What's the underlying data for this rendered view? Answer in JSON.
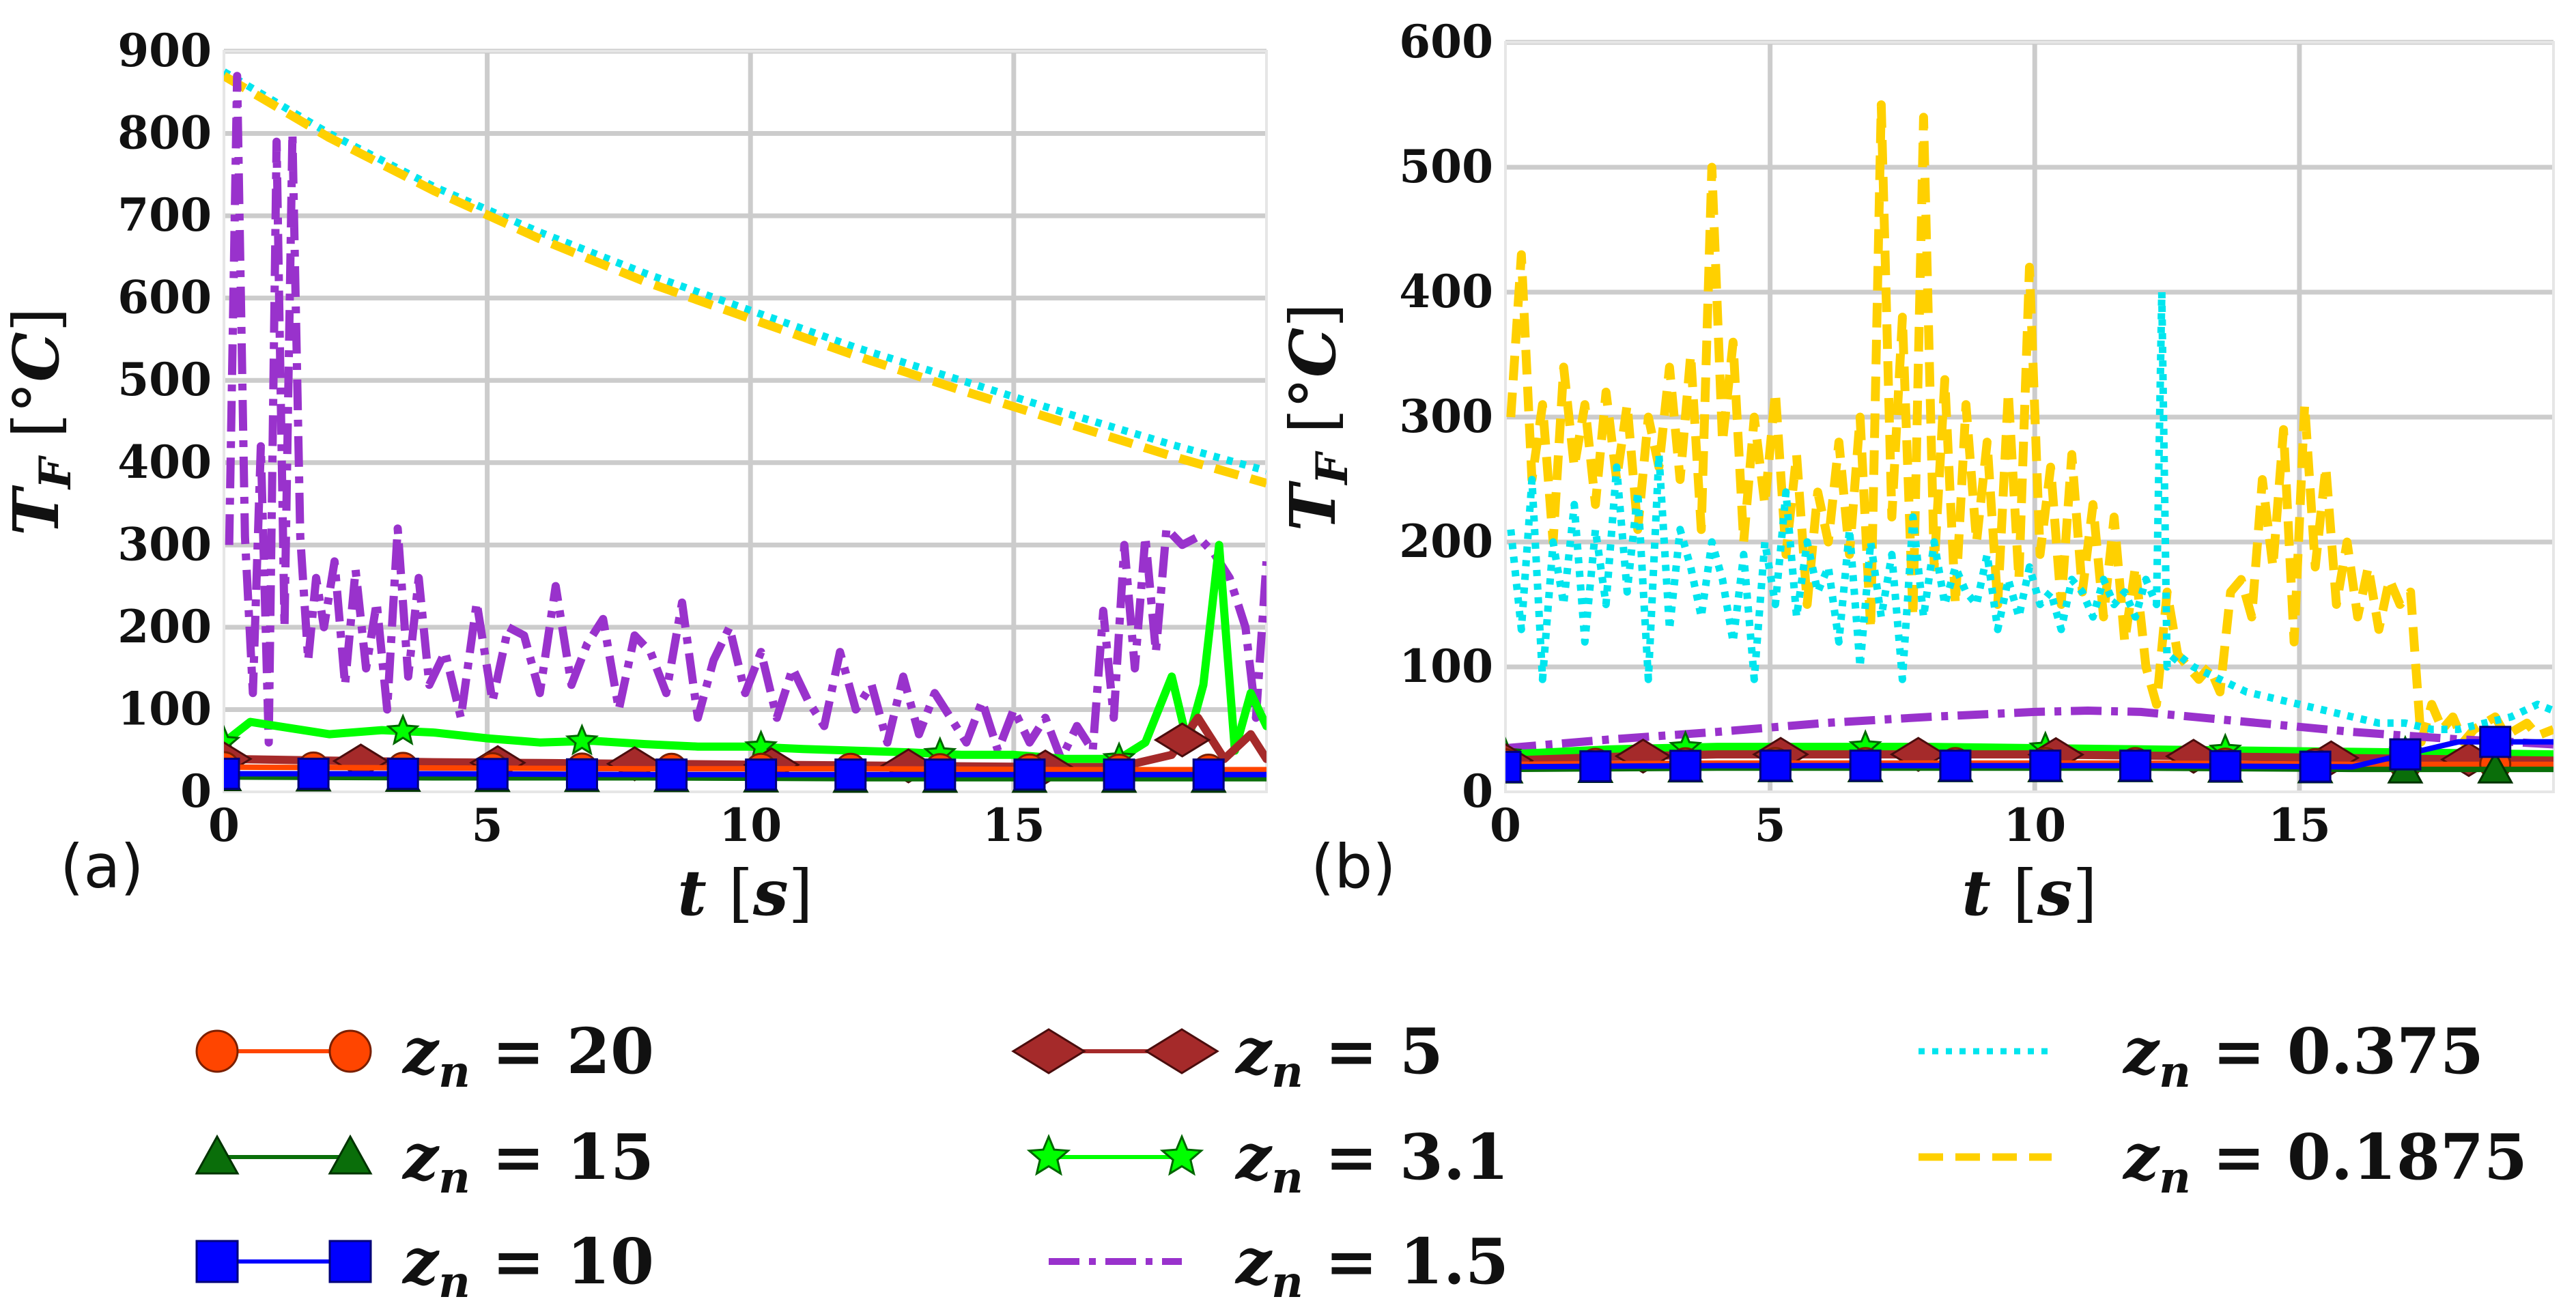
{
  "colors": {
    "zn20": "#ff4500",
    "zn15": "#0a6e0a",
    "zn10": "#0000ff",
    "zn5": "#a52a2a",
    "zn3_1": "#00ff00",
    "zn1_5": "#9932cc",
    "zn0_375": "#00e5ee",
    "zn0_1875": "#ffd000",
    "grid": "#cccccc"
  },
  "legend": [
    {
      "key": "zn20",
      "text": "z",
      "sub": "n",
      "eq": " = 20",
      "marker": "circle",
      "dash": "solid"
    },
    {
      "key": "zn15",
      "text": "z",
      "sub": "n",
      "eq": " = 15",
      "marker": "triangle",
      "dash": "solid"
    },
    {
      "key": "zn10",
      "text": "z",
      "sub": "n",
      "eq": " = 10",
      "marker": "square",
      "dash": "solid"
    },
    {
      "key": "zn5",
      "text": "z",
      "sub": "n",
      "eq": " = 5",
      "marker": "diamond",
      "dash": "solid"
    },
    {
      "key": "zn3_1",
      "text": "z",
      "sub": "n",
      "eq": " = 3.1",
      "marker": "star",
      "dash": "solid"
    },
    {
      "key": "zn1_5",
      "text": "z",
      "sub": "n",
      "eq": " = 1.5",
      "marker": "none",
      "dash": "dashdot"
    },
    {
      "key": "zn0_375",
      "text": "z",
      "sub": "n",
      "eq": " = 0.375",
      "marker": "none",
      "dash": "dotted"
    },
    {
      "key": "zn0_1875",
      "text": "z",
      "sub": "n",
      "eq": " = 0.1875",
      "marker": "none",
      "dash": "dashed"
    }
  ],
  "chart_data": [
    {
      "type": "line",
      "panel_label": "(a)",
      "xlabel": "t [s]",
      "ylabel": "T_F [°C]",
      "xlim": [
        0,
        19.8
      ],
      "ylim": [
        0,
        900
      ],
      "xticks": [
        0,
        5,
        10,
        15
      ],
      "yticks": [
        0,
        100,
        200,
        300,
        400,
        500,
        600,
        700,
        800,
        900
      ],
      "grid": true,
      "series": [
        {
          "name": "zn0_375",
          "x": [
            0,
            2,
            4,
            6,
            8,
            10,
            12,
            14,
            16,
            18,
            19.8
          ],
          "y": [
            875,
            800,
            735,
            680,
            630,
            585,
            540,
            500,
            460,
            422,
            390
          ]
        },
        {
          "name": "zn0_1875",
          "x": [
            0,
            2,
            4,
            6,
            8,
            10,
            12,
            14,
            16,
            18,
            19.8
          ],
          "y": [
            870,
            795,
            730,
            672,
            620,
            575,
            530,
            488,
            448,
            408,
            375
          ]
        },
        {
          "name": "zn1_5",
          "x": [
            0.1,
            0.25,
            0.4,
            0.55,
            0.7,
            0.85,
            1.0,
            1.15,
            1.3,
            1.45,
            1.6,
            1.75,
            1.9,
            2.1,
            2.3,
            2.5,
            2.7,
            2.9,
            3.1,
            3.3,
            3.5,
            3.7,
            3.9,
            4.2,
            4.5,
            4.8,
            5.1,
            5.4,
            5.7,
            6.0,
            6.3,
            6.6,
            6.9,
            7.2,
            7.5,
            7.8,
            8.1,
            8.4,
            8.7,
            9.0,
            9.3,
            9.6,
            9.9,
            10.2,
            10.5,
            10.8,
            11.1,
            11.4,
            11.7,
            12.0,
            12.3,
            12.6,
            12.9,
            13.2,
            13.5,
            13.8,
            14.1,
            14.4,
            14.7,
            15.0,
            15.3,
            15.6,
            15.9,
            16.2,
            16.5,
            16.7,
            16.9,
            17.1,
            17.3,
            17.5,
            17.7,
            17.9,
            18.2,
            18.5,
            18.8,
            19.1,
            19.4,
            19.6,
            19.8
          ],
          "y": [
            300,
            870,
            310,
            120,
            420,
            60,
            790,
            200,
            800,
            310,
            160,
            260,
            200,
            280,
            130,
            270,
            150,
            230,
            100,
            320,
            140,
            260,
            130,
            170,
            90,
            230,
            110,
            200,
            190,
            120,
            250,
            130,
            180,
            210,
            100,
            190,
            170,
            120,
            230,
            90,
            160,
            200,
            120,
            170,
            90,
            150,
            110,
            80,
            170,
            100,
            130,
            60,
            140,
            70,
            120,
            90,
            60,
            110,
            50,
            100,
            60,
            90,
            40,
            80,
            50,
            220,
            90,
            300,
            150,
            310,
            170,
            320,
            300,
            310,
            290,
            260,
            200,
            90,
            280
          ]
        },
        {
          "name": "zn3_1",
          "x": [
            0,
            0.5,
            1,
            2,
            3,
            4,
            5,
            6,
            7,
            8,
            9,
            10,
            11,
            12,
            13,
            14,
            15,
            16,
            17,
            17.5,
            18,
            18.3,
            18.6,
            18.9,
            19.2,
            19.5,
            19.8
          ],
          "y": [
            60,
            85,
            80,
            70,
            75,
            72,
            65,
            60,
            62,
            58,
            55,
            55,
            52,
            50,
            48,
            45,
            45,
            40,
            40,
            60,
            140,
            60,
            130,
            300,
            50,
            120,
            80
          ]
        },
        {
          "name": "zn5",
          "x": [
            0,
            2,
            4,
            6,
            8,
            10,
            12,
            14,
            16,
            17,
            18,
            18.5,
            19,
            19.5,
            19.8
          ],
          "y": [
            40,
            38,
            36,
            35,
            34,
            33,
            32,
            31,
            30,
            30,
            45,
            90,
            40,
            70,
            40
          ]
        },
        {
          "name": "zn20",
          "x": [
            0,
            4,
            8,
            12,
            16,
            19.8
          ],
          "y": [
            30,
            29,
            28,
            28,
            27,
            27
          ]
        },
        {
          "name": "zn15",
          "x": [
            0,
            4,
            8,
            12,
            16,
            19.8
          ],
          "y": [
            18,
            17,
            17,
            16,
            16,
            16
          ]
        },
        {
          "name": "zn10",
          "x": [
            0,
            4,
            8,
            12,
            16,
            19.8
          ],
          "y": [
            22,
            22,
            21,
            21,
            21,
            21
          ]
        }
      ]
    },
    {
      "type": "line",
      "panel_label": "(b)",
      "xlabel": "t [s]",
      "ylabel": "T_F [°C]",
      "xlim": [
        0,
        19.8
      ],
      "ylim": [
        0,
        600
      ],
      "xticks": [
        0,
        5,
        10,
        15
      ],
      "yticks": [
        0,
        100,
        200,
        300,
        400,
        500,
        600
      ],
      "grid": true,
      "series": [
        {
          "name": "zn0_1875",
          "x": [
            0.1,
            0.3,
            0.5,
            0.7,
            0.9,
            1.1,
            1.3,
            1.5,
            1.7,
            1.9,
            2.1,
            2.3,
            2.5,
            2.7,
            2.9,
            3.1,
            3.3,
            3.5,
            3.7,
            3.9,
            4.1,
            4.3,
            4.5,
            4.7,
            4.9,
            5.1,
            5.3,
            5.5,
            5.7,
            5.9,
            6.1,
            6.3,
            6.5,
            6.7,
            6.9,
            7.1,
            7.3,
            7.5,
            7.7,
            7.9,
            8.1,
            8.3,
            8.5,
            8.7,
            8.9,
            9.1,
            9.3,
            9.5,
            9.7,
            9.9,
            10.1,
            10.3,
            10.5,
            10.7,
            10.9,
            11.1,
            11.3,
            11.5,
            11.7,
            11.9,
            12.1,
            12.3,
            12.5,
            12.7,
            12.9,
            13.1,
            13.3,
            13.5,
            13.7,
            13.9,
            14.1,
            14.3,
            14.5,
            14.7,
            14.9,
            15.1,
            15.3,
            15.5,
            15.7,
            15.9,
            16.1,
            16.3,
            16.5,
            16.7,
            16.9,
            17.1,
            17.3,
            17.5,
            17.7,
            17.9,
            18.1,
            18.3,
            18.5,
            18.7,
            18.9,
            19.1,
            19.3,
            19.5,
            19.8
          ],
          "y": [
            300,
            430,
            250,
            310,
            200,
            340,
            260,
            310,
            230,
            320,
            250,
            310,
            210,
            300,
            260,
            340,
            250,
            350,
            210,
            500,
            280,
            360,
            200,
            300,
            230,
            320,
            190,
            270,
            150,
            240,
            200,
            280,
            190,
            300,
            130,
            550,
            220,
            380,
            140,
            540,
            180,
            330,
            150,
            310,
            200,
            280,
            150,
            320,
            170,
            420,
            190,
            260,
            150,
            270,
            160,
            230,
            140,
            220,
            120,
            180,
            100,
            70,
            160,
            110,
            100,
            90,
            100,
            80,
            160,
            170,
            140,
            250,
            180,
            290,
            120,
            310,
            180,
            260,
            150,
            200,
            140,
            180,
            130,
            170,
            150,
            160,
            40,
            70,
            50,
            60,
            40,
            50,
            55,
            60,
            45,
            50,
            55,
            45,
            50
          ]
        },
        {
          "name": "zn0_375",
          "x": [
            0.1,
            0.3,
            0.5,
            0.7,
            0.9,
            1.1,
            1.3,
            1.5,
            1.7,
            1.9,
            2.1,
            2.3,
            2.5,
            2.7,
            2.9,
            3.1,
            3.3,
            3.5,
            3.7,
            3.9,
            4.1,
            4.3,
            4.5,
            4.7,
            4.9,
            5.1,
            5.3,
            5.5,
            5.7,
            5.9,
            6.1,
            6.3,
            6.5,
            6.7,
            6.9,
            7.1,
            7.3,
            7.5,
            7.7,
            7.9,
            8.1,
            8.3,
            8.5,
            8.7,
            8.9,
            9.1,
            9.3,
            9.5,
            9.7,
            9.9,
            10.1,
            10.3,
            10.5,
            10.7,
            10.9,
            11.1,
            11.3,
            11.5,
            11.7,
            11.9,
            12.1,
            12.3,
            12.4,
            12.5,
            12.7,
            13.0,
            13.5,
            14.0,
            14.5,
            15.0,
            15.5,
            16.0,
            16.5,
            17.0,
            17.5,
            18.0,
            18.5,
            19.0,
            19.5,
            19.8
          ],
          "y": [
            210,
            130,
            250,
            90,
            200,
            150,
            230,
            120,
            210,
            150,
            260,
            160,
            240,
            90,
            270,
            130,
            210,
            180,
            140,
            200,
            170,
            120,
            190,
            90,
            200,
            150,
            240,
            140,
            200,
            160,
            180,
            120,
            210,
            100,
            200,
            140,
            190,
            90,
            220,
            140,
            200,
            150,
            180,
            160,
            150,
            190,
            130,
            170,
            140,
            180,
            150,
            160,
            130,
            170,
            160,
            140,
            170,
            150,
            160,
            140,
            170,
            150,
            400,
            100,
            110,
            100,
            90,
            80,
            75,
            70,
            65,
            60,
            55,
            55,
            50,
            50,
            55,
            60,
            70,
            65
          ]
        },
        {
          "name": "zn1_5",
          "x": [
            0,
            2,
            4,
            6,
            8,
            10,
            11,
            12,
            13,
            14,
            15,
            16,
            17,
            18,
            19,
            19.8
          ],
          "y": [
            35,
            42,
            48,
            55,
            60,
            64,
            65,
            64,
            60,
            56,
            52,
            48,
            45,
            42,
            40,
            38
          ]
        },
        {
          "name": "zn3_1",
          "x": [
            0,
            2,
            4,
            6,
            8,
            10,
            12,
            14,
            16,
            18,
            19.8
          ],
          "y": [
            30,
            34,
            36,
            36,
            36,
            35,
            34,
            33,
            32,
            31,
            30
          ]
        },
        {
          "name": "zn5",
          "x": [
            0,
            2,
            4,
            6,
            8,
            10,
            12,
            14,
            16,
            18,
            19.8
          ],
          "y": [
            25,
            28,
            30,
            30,
            30,
            30,
            29,
            28,
            27,
            26,
            25
          ]
        },
        {
          "name": "zn20",
          "x": [
            0,
            4,
            8,
            12,
            16,
            19.8
          ],
          "y": [
            22,
            23,
            23,
            23,
            22,
            22
          ]
        },
        {
          "name": "zn15",
          "x": [
            0,
            4,
            8,
            12,
            16,
            19.8
          ],
          "y": [
            18,
            19,
            19,
            19,
            18,
            18
          ]
        },
        {
          "name": "zn10",
          "x": [
            0,
            4,
            8,
            12,
            16,
            18,
            19.8
          ],
          "y": [
            20,
            21,
            21,
            21,
            20,
            40,
            40
          ]
        }
      ]
    }
  ]
}
